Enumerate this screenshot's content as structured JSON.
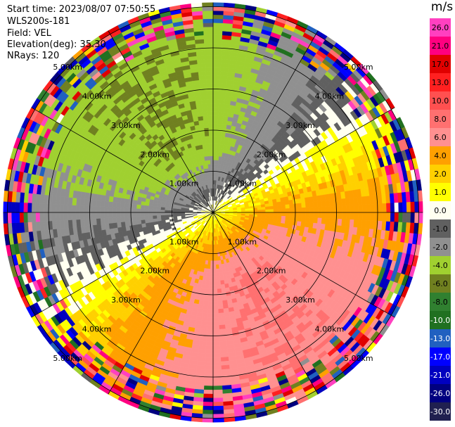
{
  "header": {
    "start_time": "Start time: 2023/08/07 07:50:55",
    "instrument": "WLS200s-181",
    "field": "Field: VEL",
    "elevation": "Elevation(deg): 35.30",
    "nrays": "NRays: 120"
  },
  "chart_data": {
    "type": "heatmap",
    "projection": "polar-ppi",
    "range_rings_km": [
      1,
      2,
      3,
      4,
      5
    ],
    "ring_labels": [
      "1.00km",
      "2.00km",
      "3.00km",
      "4.00km",
      "5.00km"
    ],
    "max_range_km": 5.1,
    "spoke_interval_deg": 30,
    "colorbar": {
      "unit": "m/s",
      "ticks": [
        "26.0",
        "21.0",
        "17.0",
        "13.0",
        "10.0",
        "8.0",
        "6.0",
        "4.0",
        "2.0",
        "1.0",
        "0.0",
        "-1.0",
        "-2.0",
        "-4.0",
        "-6.0",
        "-8.0",
        "-10.0",
        "-13.0",
        "-17.0",
        "-21.0",
        "-26.0",
        "-30.0"
      ],
      "colors": [
        "#ff40c0",
        "#ff0080",
        "#e00000",
        "#ff2020",
        "#ff5050",
        "#ff7070",
        "#ff9090",
        "#ffa000",
        "#ffd000",
        "#ffff00",
        "#fffff0",
        "#606060",
        "#909090",
        "#a0d030",
        "#708020",
        "#308030",
        "#207020",
        "#2060c0",
        "#0000ff",
        "#0000c0",
        "#000080",
        "#202050"
      ]
    },
    "velocity_pattern": {
      "description_note": "",
      "toward_sector_deg": [
        225,
        45
      ],
      "receding_peak_ms": 6.0,
      "approaching_peak_ms": -6.0,
      "noise_beyond_km": 4.2
    }
  }
}
